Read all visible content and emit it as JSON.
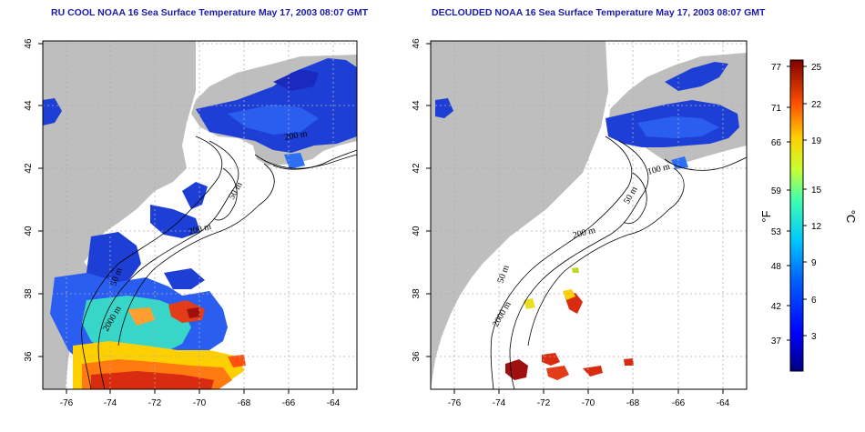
{
  "titles": {
    "left": "RU COOL NOAA 16 Sea Surface Temperature May 17, 2003 08:07 GMT",
    "right": "DECLOUDED NOAA 16 Sea Surface Temperature May 17, 2003 08:07 GMT"
  },
  "axes": {
    "lon_ticks": [
      "-76",
      "-74",
      "-72",
      "-70",
      "-68",
      "-66",
      "-64"
    ],
    "lat_ticks": [
      "46",
      "44",
      "42",
      "40",
      "38",
      "36"
    ]
  },
  "contour_labels": {
    "left": [
      "200 m",
      "50 m",
      "200 m",
      "50 m",
      "2000 m"
    ],
    "right": [
      "100 m",
      "50 m",
      "200 m",
      "50 m",
      "2000 m"
    ]
  },
  "colorbar": {
    "fahrenheit_ticks": [
      "77",
      "71",
      "66",
      "59",
      "53",
      "48",
      "42",
      "37"
    ],
    "celsius_ticks": [
      "25",
      "22",
      "19",
      "15",
      "12",
      "9",
      "6",
      "3"
    ],
    "fahrenheit_label": "°F",
    "celsius_label": "°C"
  },
  "colors": {
    "land": "#bebebe",
    "ocean_background": "#ffffff",
    "cold": "#1d3fd6",
    "warm": "#d92b10",
    "title": "#1a1aa8"
  }
}
